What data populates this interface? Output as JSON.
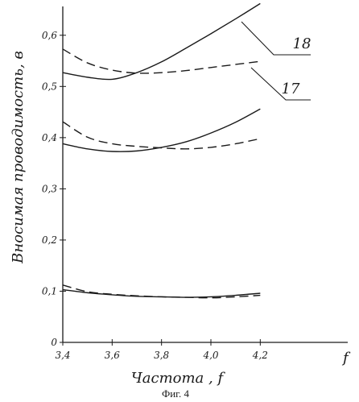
{
  "chart_data": {
    "type": "line",
    "title": "",
    "xlabel": "Частота , f",
    "x_axis_end_label": "f",
    "ylabel": "Вносимая проводимость, в",
    "caption": "Фиг. 4",
    "xlim": [
      3.4,
      4.6
    ],
    "ylim": [
      0,
      0.65
    ],
    "x_ticks": [
      "3,4",
      "3,6",
      "3,8",
      "4,0",
      "4,2"
    ],
    "x_tick_values": [
      3.4,
      3.6,
      3.8,
      4.0,
      4.2
    ],
    "y_ticks": [
      "0",
      "0,1",
      "0,2",
      "0,3",
      "0,4",
      "0,5",
      "0,6"
    ],
    "y_tick_values": [
      0,
      0.1,
      0.2,
      0.3,
      0.4,
      0.5,
      0.6
    ],
    "grid": false,
    "curve_labels": [
      {
        "text": "18",
        "style": "solid"
      },
      {
        "text": "17",
        "style": "dashed"
      }
    ],
    "series": [
      {
        "style": "solid",
        "x": [
          3.4,
          3.5,
          3.6,
          3.7,
          3.8,
          3.9,
          4.0,
          4.1,
          4.2
        ],
        "y": [
          0.527,
          0.518,
          0.514,
          0.527,
          0.548,
          0.575,
          0.603,
          0.632,
          0.662
        ]
      },
      {
        "style": "dashed",
        "x": [
          3.4,
          3.5,
          3.6,
          3.7,
          3.8,
          3.9,
          4.0,
          4.1,
          4.2
        ],
        "y": [
          0.573,
          0.546,
          0.532,
          0.526,
          0.527,
          0.531,
          0.537,
          0.543,
          0.549
        ]
      },
      {
        "style": "solid",
        "x": [
          3.4,
          3.5,
          3.6,
          3.7,
          3.8,
          3.9,
          4.0,
          4.1,
          4.2
        ],
        "y": [
          0.388,
          0.378,
          0.373,
          0.374,
          0.381,
          0.392,
          0.409,
          0.43,
          0.456
        ]
      },
      {
        "style": "dashed",
        "x": [
          3.4,
          3.5,
          3.6,
          3.7,
          3.8,
          3.9,
          4.0,
          4.1,
          4.2
        ],
        "y": [
          0.431,
          0.401,
          0.388,
          0.383,
          0.38,
          0.378,
          0.381,
          0.388,
          0.398
        ]
      },
      {
        "style": "solid",
        "x": [
          3.4,
          3.5,
          3.6,
          3.7,
          3.8,
          3.9,
          4.0,
          4.1,
          4.2
        ],
        "y": [
          0.103,
          0.097,
          0.093,
          0.09,
          0.089,
          0.088,
          0.089,
          0.092,
          0.096
        ]
      },
      {
        "style": "dashed",
        "x": [
          3.4,
          3.5,
          3.6,
          3.7,
          3.8,
          3.9,
          4.0,
          4.1,
          4.2
        ],
        "y": [
          0.112,
          0.099,
          0.094,
          0.091,
          0.089,
          0.088,
          0.087,
          0.089,
          0.092
        ]
      }
    ]
  }
}
